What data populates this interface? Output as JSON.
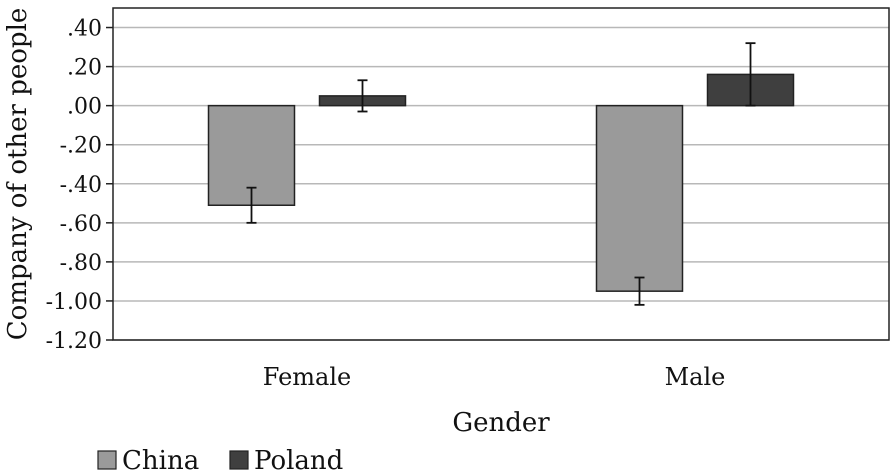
{
  "chart_data": {
    "type": "bar",
    "xlabel": "Gender",
    "ylabel": "Company of other people",
    "categories": [
      "Female",
      "Male"
    ],
    "series": [
      {
        "name": "China",
        "color": "#9a9a9a",
        "values": [
          -0.51,
          -0.95
        ],
        "error": [
          0.09,
          0.07
        ]
      },
      {
        "name": "Poland",
        "color": "#3f3f3f",
        "values": [
          0.05,
          0.16
        ],
        "error": [
          0.08,
          0.16
        ]
      }
    ],
    "ylim": [
      -1.2,
      0.5
    ],
    "yticks": [
      ".40",
      ".20",
      ".00",
      "-.20",
      "-.40",
      "-.60",
      "-.80",
      "-1.00",
      "-1.20"
    ],
    "grid": true,
    "legend": "bottom-left"
  }
}
